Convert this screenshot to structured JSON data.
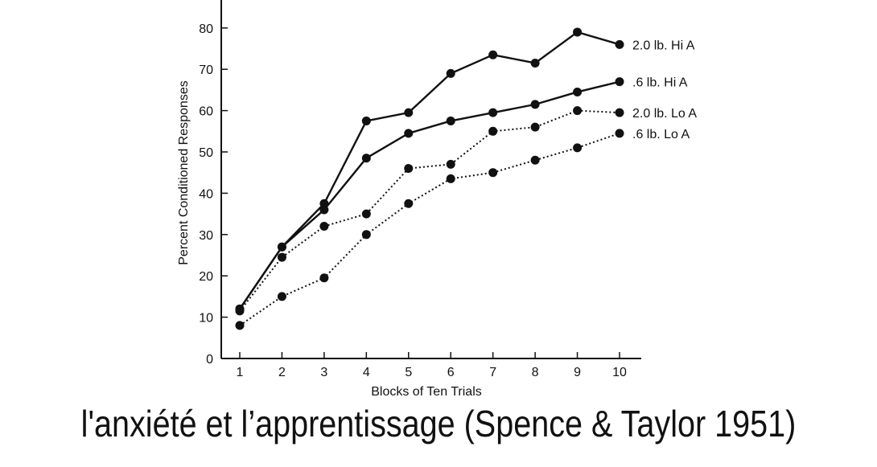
{
  "caption": "l'anxiété et l’apprentissage (Spence & Taylor 1951)",
  "chart_data": {
    "type": "line",
    "title": "",
    "xlabel": "Blocks of Ten Trials",
    "ylabel": "Percent Conditioned Responses",
    "x": [
      1,
      2,
      3,
      4,
      5,
      6,
      7,
      8,
      9,
      10
    ],
    "xlim": [
      0.5,
      10.5
    ],
    "ylim": [
      0,
      85
    ],
    "yticks": [
      0,
      10,
      20,
      30,
      40,
      50,
      60,
      70,
      80
    ],
    "grid": false,
    "legend": "direct labels at line ends",
    "series": [
      {
        "name": "2.0 lb. Hi A",
        "style": "solid",
        "color": "#111111",
        "values": [
          12,
          27,
          37.5,
          57.5,
          59.5,
          69,
          73.5,
          71.5,
          79,
          76
        ]
      },
      {
        "name": ".6 lb. Hi A",
        "style": "solid",
        "color": "#111111",
        "values": [
          12,
          27,
          36,
          48.5,
          54.5,
          57.5,
          59.5,
          61.5,
          64.5,
          67
        ]
      },
      {
        "name": "2.0 lb. Lo A",
        "style": "dotted",
        "color": "#111111",
        "values": [
          11.5,
          24.5,
          32,
          35,
          46,
          47,
          55,
          56,
          60,
          59.5
        ]
      },
      {
        "name": ".6 lb. Lo A",
        "style": "dotted",
        "color": "#111111",
        "values": [
          8,
          15,
          19.5,
          30,
          37.5,
          43.5,
          45,
          48,
          51,
          54.5
        ]
      }
    ]
  }
}
